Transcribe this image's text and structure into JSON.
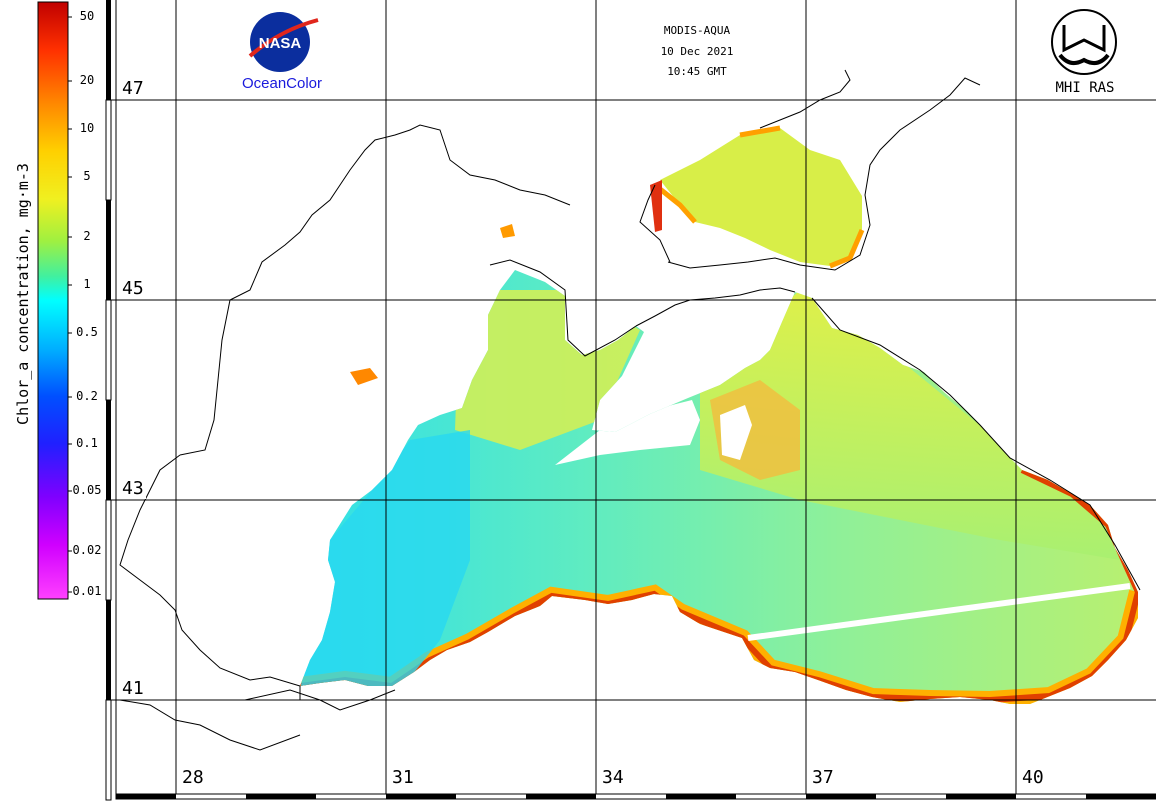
{
  "info": {
    "sensor": "MODIS-AQUA",
    "date": "10 Dec 2021",
    "time": "10:45 GMT"
  },
  "logos": {
    "nasa_emblem": "NASA",
    "nasa_caption": "OceanColor",
    "mhi_caption": "MHI RAS"
  },
  "colorbar": {
    "title": "Chlor_a concentration, mg·m-3",
    "ticks": [
      "50",
      "20",
      "10",
      "5",
      "2",
      "1",
      "0.5",
      "0.2",
      "0.1",
      "0.05",
      "0.02",
      "0.01"
    ],
    "gradient_colors": [
      "#c00000",
      "#ff3000",
      "#ff8800",
      "#ffd000",
      "#f0f020",
      "#a0f040",
      "#40f0a0",
      "#00ffff",
      "#00b0ff",
      "#0050ff",
      "#2020ff",
      "#8000ff",
      "#d000ff",
      "#ff40ff"
    ]
  },
  "grid": {
    "latitudes": [
      "47",
      "45",
      "43",
      "41"
    ],
    "longitudes": [
      "28",
      "31",
      "34",
      "37",
      "40"
    ]
  },
  "colors": {
    "grid": "#000000",
    "coast": "#000000",
    "sea_low": "#40e8c8",
    "sea_mid": "#a8f070",
    "sea_high": "#f0e840",
    "coast_high": "#ff7a00",
    "coast_max": "#d02000",
    "nasa_blue": "#0b2e9e",
    "nasa_red": "#e0261c"
  }
}
